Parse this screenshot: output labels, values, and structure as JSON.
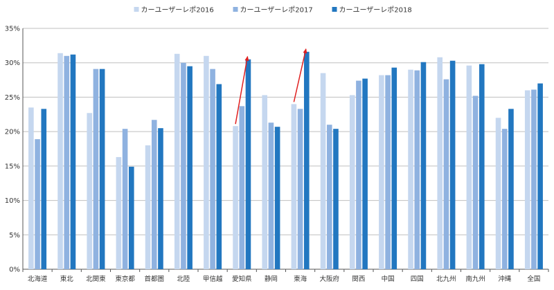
{
  "chart_data": {
    "type": "bar",
    "title": "",
    "xlabel": "",
    "ylabel": "",
    "ylim": [
      0,
      35
    ],
    "y_ticks": [
      0,
      5,
      10,
      15,
      20,
      25,
      30,
      35
    ],
    "y_tick_labels": [
      "0%",
      "5%",
      "10%",
      "15%",
      "20%",
      "25%",
      "30%",
      "35%"
    ],
    "grid": true,
    "legend_position": "top-center",
    "categories": [
      "北海道",
      "東北",
      "北関東",
      "東京都",
      "首都圏",
      "北陸",
      "甲信越",
      "愛知県",
      "静岡",
      "東海",
      "大阪府",
      "関西",
      "中国",
      "四国",
      "北九州",
      "南九州",
      "沖縄",
      "全国"
    ],
    "series": [
      {
        "name": "カーユーザーレポ2016",
        "color": "#c5d7ef",
        "values": [
          23.5,
          31.4,
          22.7,
          16.3,
          18.0,
          31.3,
          31.0,
          20.8,
          25.3,
          24.0,
          28.5,
          25.3,
          28.2,
          29.0,
          30.8,
          29.6,
          22.0,
          26.0
        ]
      },
      {
        "name": "カーユーザーレポ2017",
        "color": "#8fb2e0",
        "values": [
          18.9,
          31.0,
          29.1,
          20.4,
          21.7,
          30.0,
          29.1,
          23.7,
          21.3,
          23.3,
          21.0,
          27.4,
          28.2,
          28.9,
          27.6,
          25.2,
          20.4,
          26.1
        ]
      },
      {
        "name": "カーユーザーレポ2018",
        "color": "#2277c0",
        "values": [
          23.3,
          31.2,
          29.1,
          14.9,
          20.5,
          29.5,
          26.9,
          30.5,
          20.7,
          31.6,
          20.4,
          27.7,
          29.3,
          30.1,
          30.3,
          29.8,
          23.3,
          27.0
        ]
      }
    ],
    "annotations": [
      {
        "type": "arrow",
        "category": "愛知県",
        "from_series": 0,
        "to_series": 2,
        "color": "#e02020"
      },
      {
        "type": "arrow",
        "category": "東海",
        "from_series": 0,
        "to_series": 2,
        "color": "#e02020"
      }
    ]
  }
}
